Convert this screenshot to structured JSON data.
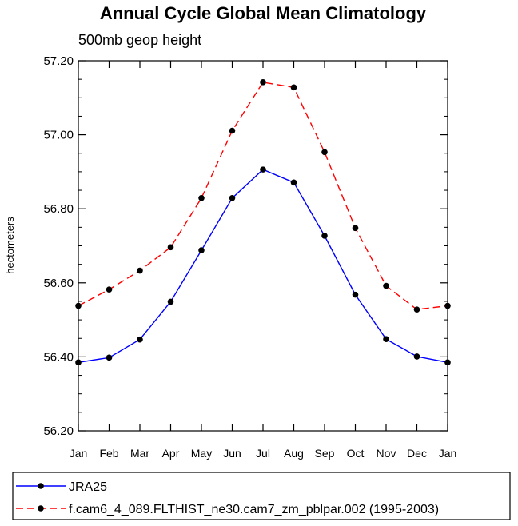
{
  "chart_data": {
    "type": "line",
    "title": "Annual Cycle Global Mean Climatology",
    "subtitle": "500mb geop height",
    "ylabel": "hectometers",
    "xlabel": "",
    "categories": [
      "Jan",
      "Feb",
      "Mar",
      "Apr",
      "May",
      "Jun",
      "Jul",
      "Aug",
      "Sep",
      "Oct",
      "Nov",
      "Dec",
      "Jan"
    ],
    "ylim": [
      56.2,
      57.2
    ],
    "yticks": [
      56.2,
      56.4,
      56.6,
      56.8,
      57.0,
      57.2
    ],
    "ytick_labels": [
      "56.20",
      "56.40",
      "56.60",
      "56.80",
      "57.00",
      "57.20"
    ],
    "series": [
      {
        "name": "JRA25",
        "color": "#0000ff",
        "style": "solid",
        "marker": "filled-circle",
        "values": [
          56.385,
          56.398,
          56.447,
          56.549,
          56.688,
          56.829,
          56.906,
          56.871,
          56.727,
          56.568,
          56.448,
          56.401,
          56.385
        ]
      },
      {
        "name": "f.cam6_4_089.FLTHIST_ne30.cam7_zm_pblpar.002 (1995-2003)",
        "color": "#ff0000",
        "style": "dashed",
        "marker": "filled-circle",
        "values": [
          56.538,
          56.582,
          56.633,
          56.696,
          56.829,
          57.011,
          57.142,
          57.128,
          56.953,
          56.748,
          56.592,
          56.528,
          56.538
        ]
      }
    ],
    "grid": false,
    "legend_position": "bottom"
  }
}
